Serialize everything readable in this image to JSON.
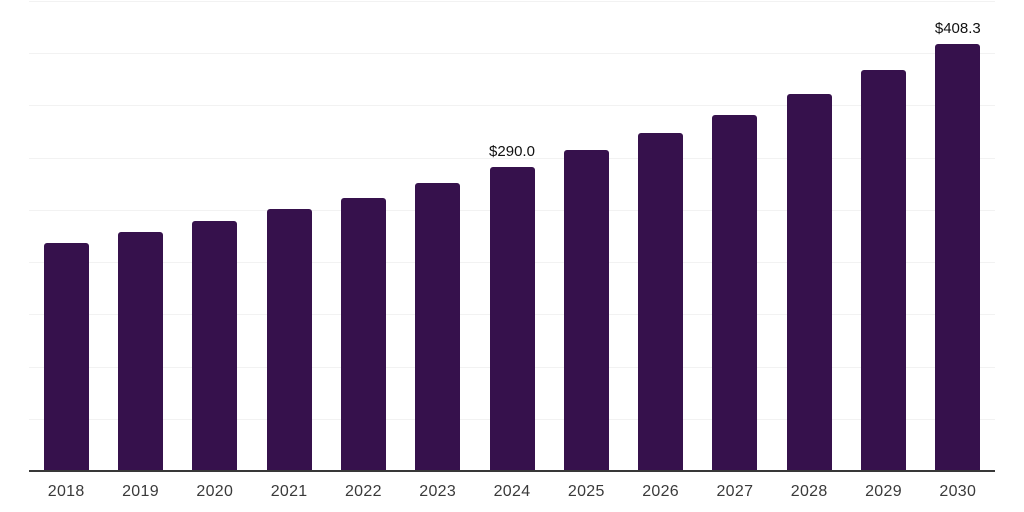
{
  "chart_data": {
    "type": "bar",
    "title": "",
    "xlabel": "",
    "ylabel": "",
    "categories": [
      "2018",
      "2019",
      "2020",
      "2021",
      "2022",
      "2023",
      "2024",
      "2025",
      "2026",
      "2027",
      "2028",
      "2029",
      "2030"
    ],
    "values": [
      217.3,
      227.8,
      238.6,
      249.7,
      260.9,
      275.2,
      290.0,
      306.6,
      322.9,
      340.0,
      359.9,
      382.6,
      408.3
    ],
    "data_labels": [
      null,
      null,
      null,
      null,
      null,
      null,
      "$290.0",
      null,
      null,
      null,
      null,
      null,
      "$408.3"
    ],
    "unit_prefix": "$",
    "ylim": [
      0,
      450
    ],
    "gridline_step": 50,
    "grid": "horizontal-only",
    "legend": "none",
    "y_axis_tick_labels": "none",
    "colors": {
      "bar": "#36114C",
      "axis_line": "#383838",
      "gridline": "#F2F2F2",
      "tick_label": "#3A3A3A",
      "data_label": "#111111",
      "background": "#FFFFFF"
    }
  }
}
